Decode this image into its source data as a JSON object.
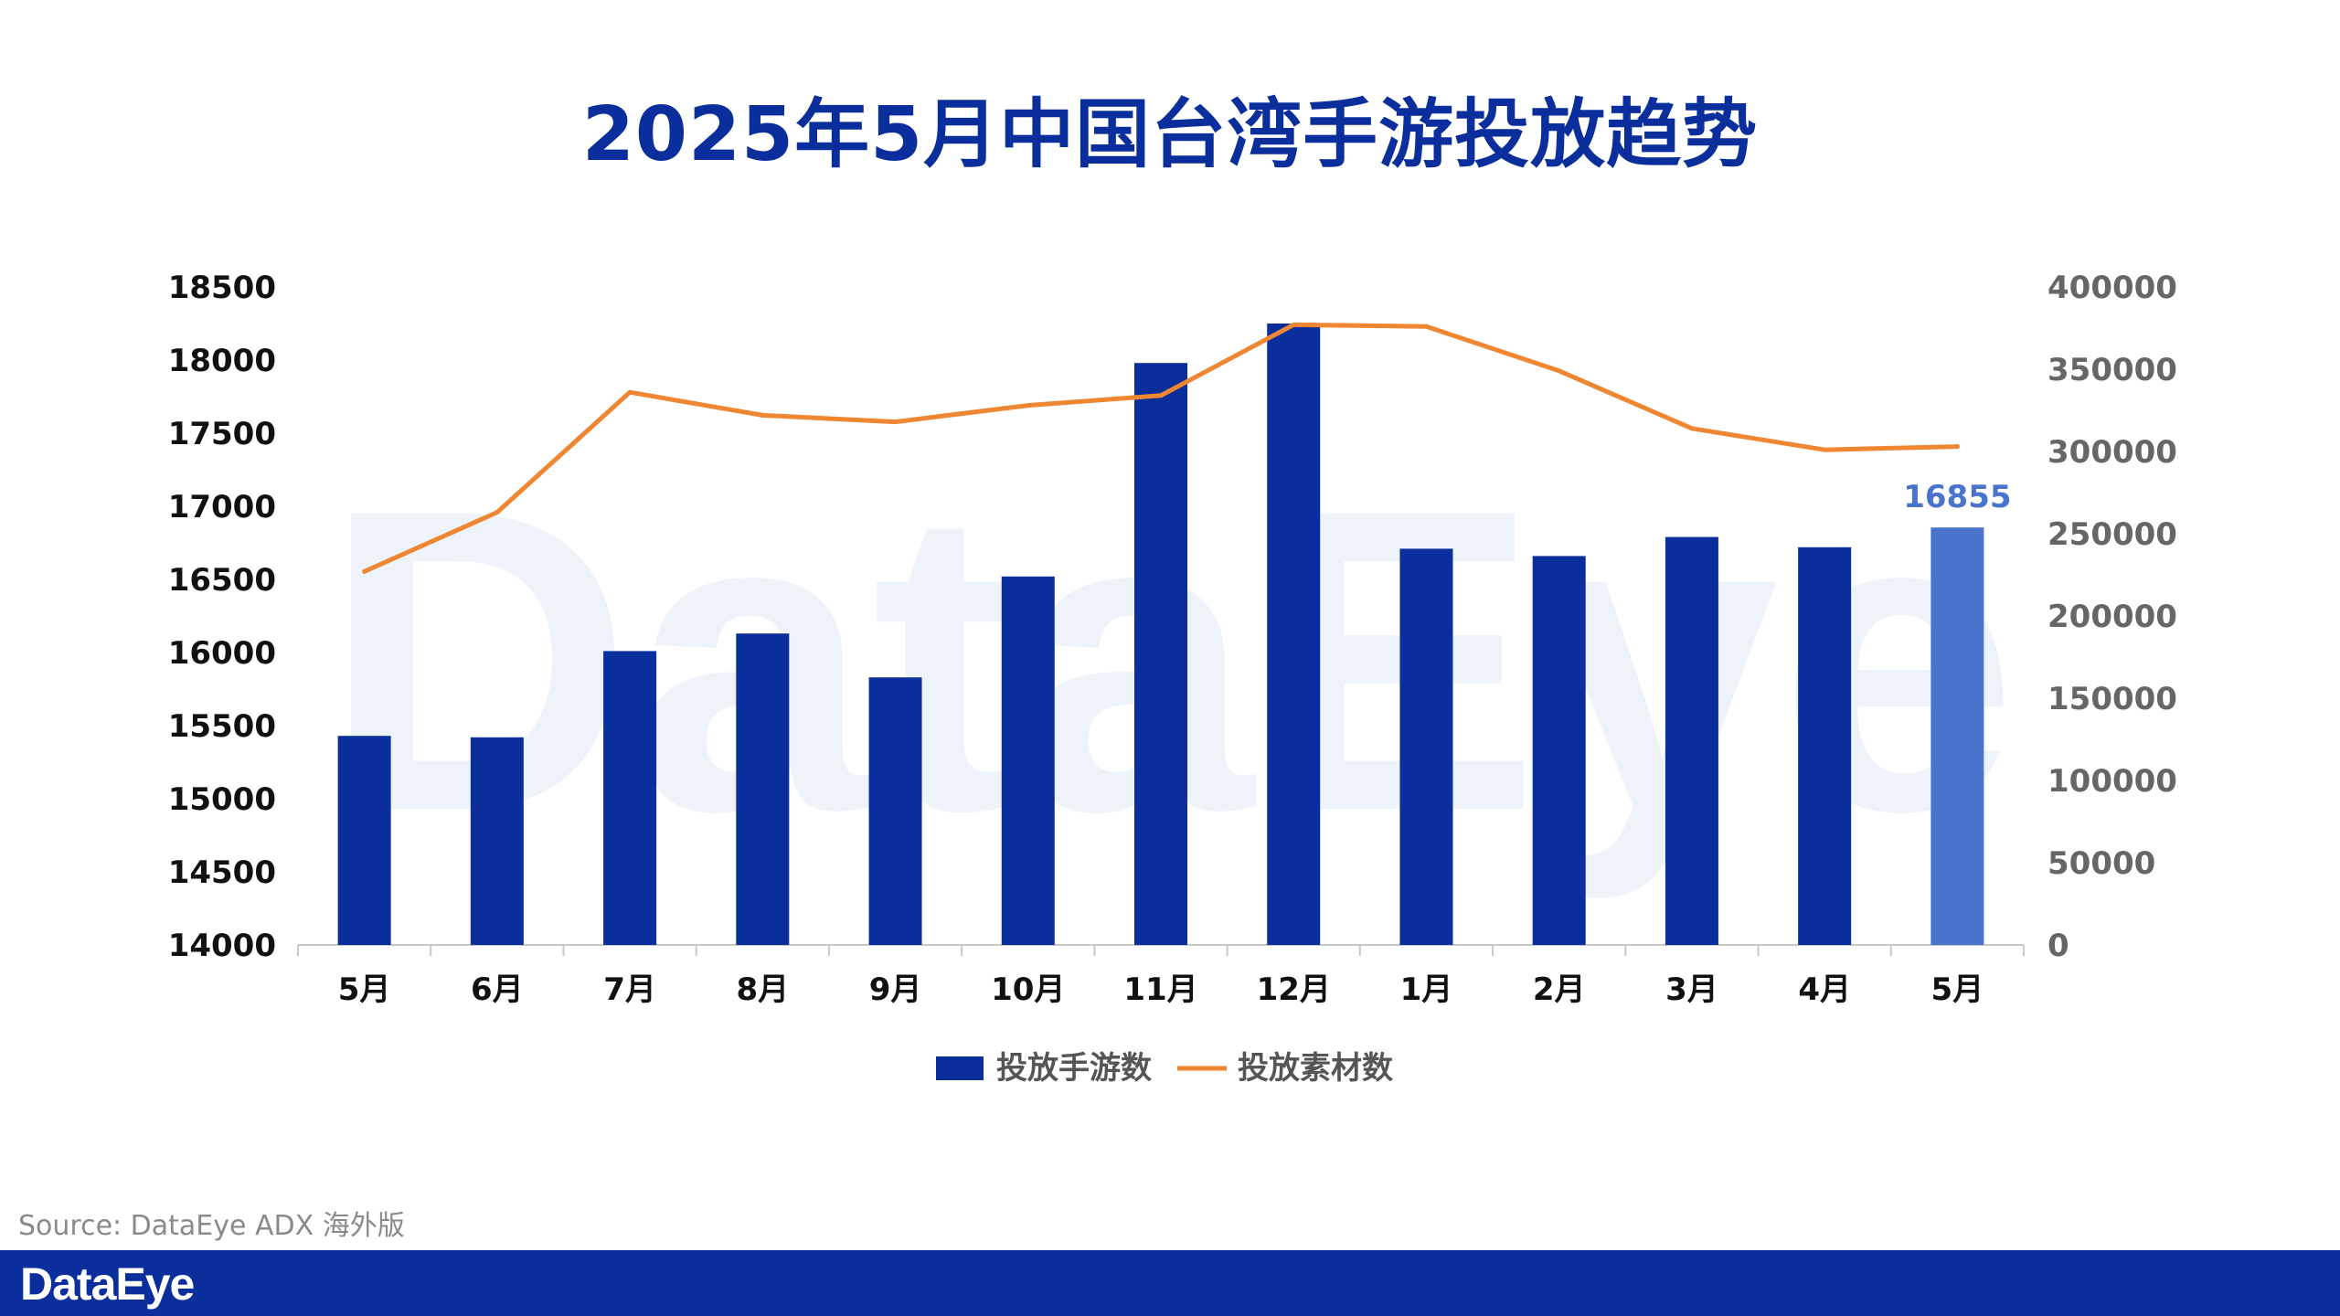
{
  "title": "2025年5月中国台湾手游投放趋势",
  "source": "Source: DataEye ADX 海外版",
  "brand": {
    "logo_text": "DataEye",
    "watermark_text": "DataEye",
    "primary_color": "#0a2f9c",
    "highlight_color": "#4a73cc",
    "line_color": "#ef8632"
  },
  "chart_data": {
    "type": "bar+line",
    "categories": [
      "5月",
      "6月",
      "7月",
      "8月",
      "9月",
      "10月",
      "11月",
      "12月",
      "1月",
      "2月",
      "3月",
      "4月",
      "5月"
    ],
    "series": [
      {
        "name": "投放手游数",
        "type": "bar",
        "axis": "left",
        "values": [
          15430,
          15420,
          16010,
          16130,
          15830,
          16520,
          17980,
          18250,
          16710,
          16660,
          16790,
          16720,
          16855
        ],
        "highlight_index": 12
      },
      {
        "name": "投放素材数",
        "type": "line",
        "axis": "right",
        "values": [
          227000,
          263000,
          336000,
          322000,
          318000,
          328000,
          334000,
          377000,
          376000,
          349000,
          314000,
          301000,
          303000
        ]
      }
    ],
    "data_labels": [
      {
        "series": "投放手游数",
        "index": 12,
        "text": "16855"
      }
    ],
    "y_left": {
      "min": 14000,
      "max": 18500,
      "ticks": [
        "14000",
        "14500",
        "15000",
        "15500",
        "16000",
        "16500",
        "17000",
        "17500",
        "18000",
        "18500"
      ]
    },
    "y_right": {
      "min": 0,
      "max": 400000,
      "ticks": [
        "0",
        "50000",
        "100000",
        "150000",
        "200000",
        "250000",
        "300000",
        "350000",
        "400000"
      ]
    },
    "legend": {
      "position": "bottom",
      "items": [
        "投放手游数",
        "投放素材数"
      ]
    },
    "grid": false
  }
}
